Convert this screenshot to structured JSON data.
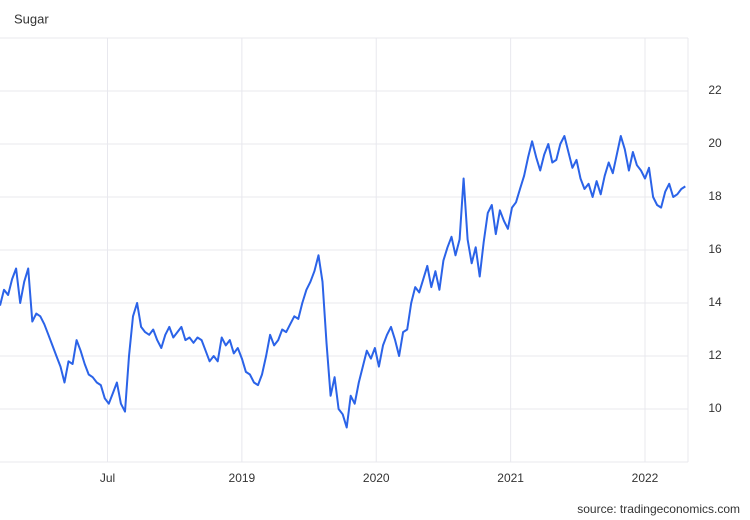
{
  "chart_data": {
    "type": "line",
    "title": "Sugar",
    "source": "source: tradingeconomics.com",
    "x": [
      2017.2,
      2017.23,
      2017.26,
      2017.29,
      2017.32,
      2017.35,
      2017.38,
      2017.41,
      2017.44,
      2017.47,
      2017.5,
      2017.53,
      2017.56,
      2017.59,
      2017.62,
      2017.65,
      2017.68,
      2017.71,
      2017.74,
      2017.77,
      2017.8,
      2017.83,
      2017.86,
      2017.89,
      2017.92,
      2017.95,
      2017.98,
      2018.01,
      2018.04,
      2018.07,
      2018.1,
      2018.13,
      2018.16,
      2018.19,
      2018.22,
      2018.25,
      2018.28,
      2018.31,
      2018.34,
      2018.37,
      2018.4,
      2018.43,
      2018.46,
      2018.49,
      2018.52,
      2018.55,
      2018.58,
      2018.61,
      2018.64,
      2018.67,
      2018.7,
      2018.73,
      2018.76,
      2018.79,
      2018.82,
      2018.85,
      2018.88,
      2018.91,
      2018.94,
      2018.97,
      2019.0,
      2019.03,
      2019.06,
      2019.09,
      2019.12,
      2019.15,
      2019.18,
      2019.21,
      2019.24,
      2019.27,
      2019.3,
      2019.33,
      2019.36,
      2019.39,
      2019.42,
      2019.45,
      2019.48,
      2019.51,
      2019.54,
      2019.57,
      2019.6,
      2019.63,
      2019.66,
      2019.69,
      2019.72,
      2019.75,
      2019.78,
      2019.81,
      2019.84,
      2019.87,
      2019.9,
      2019.93,
      2019.96,
      2019.99,
      2020.02,
      2020.05,
      2020.08,
      2020.11,
      2020.14,
      2020.17,
      2020.2,
      2020.23,
      2020.26,
      2020.29,
      2020.32,
      2020.35,
      2020.38,
      2020.41,
      2020.44,
      2020.47,
      2020.5,
      2020.53,
      2020.56,
      2020.59,
      2020.62,
      2020.65,
      2020.68,
      2020.71,
      2020.74,
      2020.77,
      2020.8,
      2020.83,
      2020.86,
      2020.89,
      2020.92,
      2020.95,
      2020.98,
      2021.01,
      2021.04,
      2021.07,
      2021.1,
      2021.13,
      2021.16,
      2021.19,
      2021.22,
      2021.25,
      2021.28,
      2021.31,
      2021.34,
      2021.37,
      2021.4,
      2021.43,
      2021.46,
      2021.49,
      2021.52,
      2021.55,
      2021.58,
      2021.61,
      2021.64,
      2021.67,
      2021.7,
      2021.73,
      2021.76,
      2021.79,
      2021.82,
      2021.85,
      2021.88,
      2021.91,
      2021.94,
      2021.97,
      2022.0,
      2022.03,
      2022.06,
      2022.09,
      2022.12,
      2022.15,
      2022.18,
      2022.21,
      2022.24,
      2022.27,
      2022.3
    ],
    "series": [
      {
        "name": "Sugar",
        "color": "#2b63e8",
        "values": [
          13.9,
          14.5,
          14.3,
          14.9,
          15.3,
          14.0,
          14.8,
          15.3,
          13.3,
          13.6,
          13.5,
          13.2,
          12.8,
          12.4,
          12.0,
          11.6,
          11.0,
          11.8,
          11.7,
          12.6,
          12.2,
          11.7,
          11.3,
          11.2,
          11.0,
          10.9,
          10.4,
          10.2,
          10.6,
          11.0,
          10.2,
          9.9,
          12.0,
          13.5,
          14.0,
          13.1,
          12.9,
          12.8,
          13.0,
          12.6,
          12.3,
          12.8,
          13.1,
          12.7,
          12.9,
          13.1,
          12.6,
          12.7,
          12.5,
          12.7,
          12.6,
          12.2,
          11.8,
          12.0,
          11.8,
          12.7,
          12.4,
          12.6,
          12.1,
          12.3,
          11.9,
          11.4,
          11.3,
          11.0,
          10.9,
          11.3,
          12.0,
          12.8,
          12.4,
          12.6,
          13.0,
          12.9,
          13.2,
          13.5,
          13.4,
          14.0,
          14.5,
          14.8,
          15.2,
          15.8,
          14.8,
          12.5,
          10.5,
          11.2,
          10.0,
          9.8,
          9.3,
          10.5,
          10.2,
          11.0,
          11.6,
          12.2,
          11.9,
          12.3,
          11.6,
          12.4,
          12.8,
          13.1,
          12.6,
          12.0,
          12.9,
          13.0,
          14.0,
          14.6,
          14.4,
          14.9,
          15.4,
          14.6,
          15.2,
          14.5,
          15.6,
          16.1,
          16.5,
          15.8,
          16.4,
          18.7,
          16.4,
          15.5,
          16.1,
          15.0,
          16.3,
          17.4,
          17.7,
          16.6,
          17.5,
          17.1,
          16.8,
          17.6,
          17.8,
          18.3,
          18.8,
          19.5,
          20.1,
          19.5,
          19.0,
          19.6,
          20.0,
          19.3,
          19.4,
          20.0,
          20.3,
          19.7,
          19.1,
          19.4,
          18.7,
          18.3,
          18.5,
          18.0,
          18.6,
          18.1,
          18.8,
          19.3,
          18.9,
          19.6,
          20.3,
          19.8,
          19.0,
          19.7,
          19.2,
          19.0,
          18.7,
          19.1,
          18.0,
          17.7,
          17.6,
          18.2,
          18.5,
          18.0,
          18.1,
          18.3,
          18.4
        ]
      }
    ],
    "xlim": [
      2017.2,
      2022.32
    ],
    "xticks": [
      {
        "value": 2018,
        "label": "Jul"
      },
      2019,
      2020,
      2021,
      2022
    ],
    "ylim": [
      8,
      24
    ],
    "yticks": [
      10,
      12,
      14,
      16,
      18,
      20,
      22
    ],
    "grid": true
  }
}
